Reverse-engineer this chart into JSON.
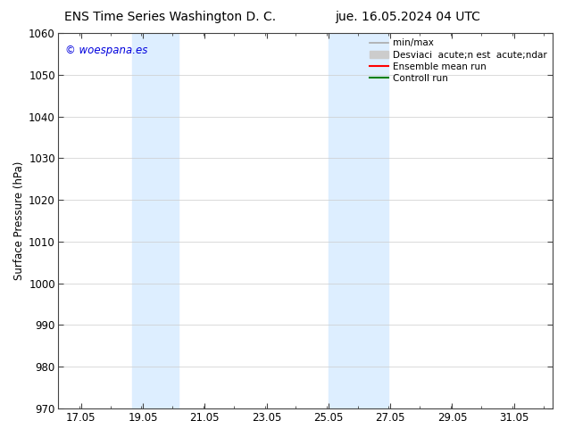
{
  "title_left": "ENS Time Series Washington D. C.",
  "title_right": "jue. 16.05.2024 04 UTC",
  "ylabel": "Surface Pressure (hPa)",
  "watermark": "© woespana.es",
  "watermark_color": "#0000dd",
  "ylim": [
    970,
    1060
  ],
  "yticks": [
    970,
    980,
    990,
    1000,
    1010,
    1020,
    1030,
    1040,
    1050,
    1060
  ],
  "xtick_labels": [
    "17.05",
    "19.05",
    "21.05",
    "23.05",
    "25.05",
    "27.05",
    "29.05",
    "31.05"
  ],
  "xtick_positions": [
    17.05,
    19.05,
    21.05,
    23.05,
    25.05,
    27.05,
    29.05,
    31.05
  ],
  "xlim": [
    16.3,
    32.3
  ],
  "shaded_bands": [
    {
      "xmin": 18.7,
      "xmax": 20.2
    },
    {
      "xmin": 25.05,
      "xmax": 27.0
    }
  ],
  "band_color": "#ddeeff",
  "background_color": "#ffffff",
  "plot_bg_color": "#ffffff",
  "grid_color": "#cccccc",
  "legend_entries": [
    {
      "label": "min/max",
      "color": "#aaaaaa",
      "lw": 1.2,
      "ls": "-",
      "type": "line"
    },
    {
      "label": "Desviaci  acute;n est  acute;ndar",
      "color": "#cccccc",
      "lw": 8,
      "ls": "-",
      "type": "patch"
    },
    {
      "label": "Ensemble mean run",
      "color": "#ff0000",
      "lw": 1.5,
      "ls": "-",
      "type": "line"
    },
    {
      "label": "Controll run",
      "color": "#008000",
      "lw": 1.5,
      "ls": "-",
      "type": "line"
    }
  ],
  "title_fontsize": 10,
  "tick_fontsize": 8.5,
  "ylabel_fontsize": 8.5,
  "legend_fontsize": 7.5
}
